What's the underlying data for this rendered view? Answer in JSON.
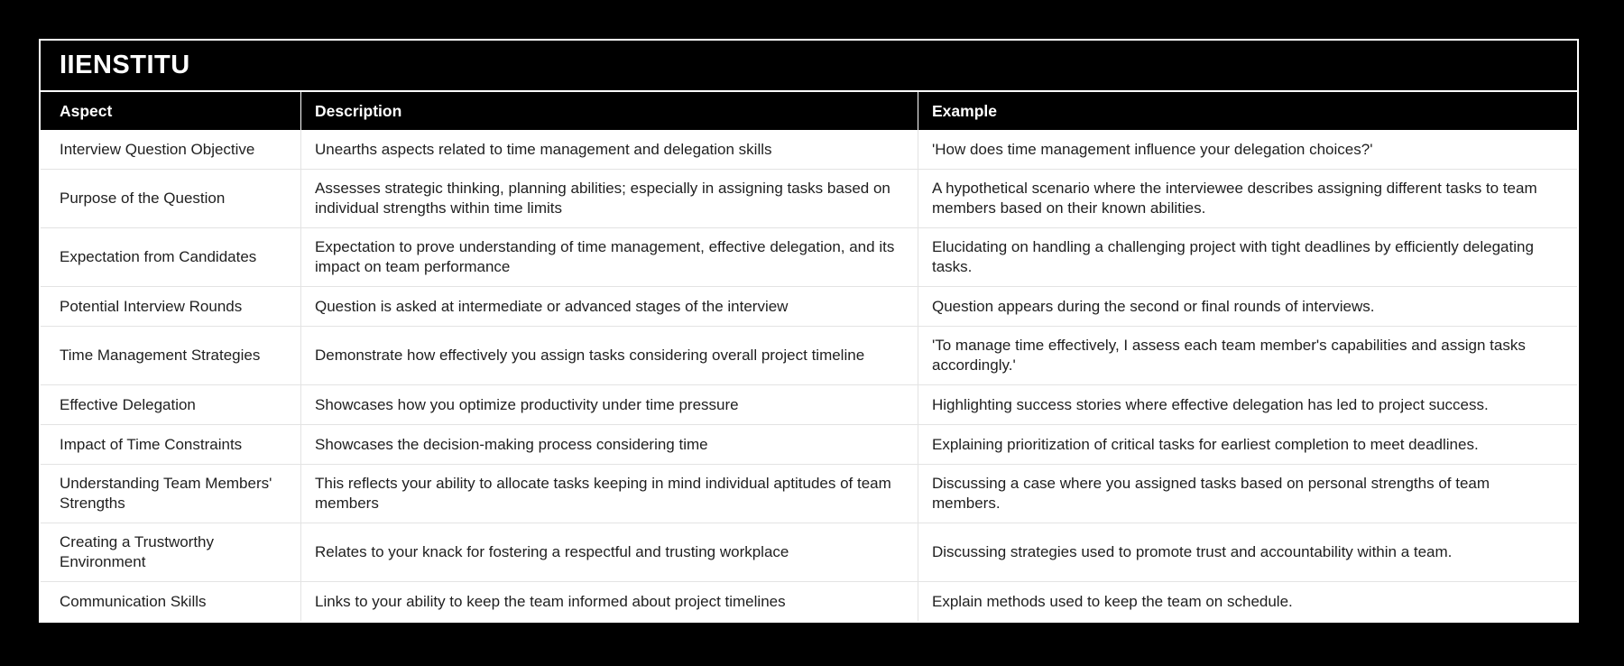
{
  "brand": {
    "title": "IIENSTITU"
  },
  "table": {
    "headers": {
      "aspect": "Aspect",
      "description": "Description",
      "example": "Example"
    },
    "rows": [
      {
        "aspect": "Interview Question Objective",
        "description": "Unearths aspects related to time management and delegation skills",
        "example": "'How does time management influence your delegation choices?'"
      },
      {
        "aspect": "Purpose of the Question",
        "description": "Assesses strategic thinking, planning abilities; especially in assigning tasks based on individual strengths within time limits",
        "example": "A hypothetical scenario where the interviewee describes assigning different tasks to team members based on their known abilities."
      },
      {
        "aspect": "Expectation from Candidates",
        "description": "Expectation to prove understanding of time management, effective delegation, and its impact on team performance",
        "example": "Elucidating on handling a challenging project with tight deadlines by efficiently delegating tasks."
      },
      {
        "aspect": "Potential Interview Rounds",
        "description": "Question is asked at intermediate or advanced stages of the interview",
        "example": "Question appears during the second or final rounds of interviews."
      },
      {
        "aspect": "Time Management Strategies",
        "description": "Demonstrate how effectively you assign tasks considering overall project timeline",
        "example": "'To manage time effectively, I assess each team member's capabilities and assign tasks accordingly.'"
      },
      {
        "aspect": "Effective Delegation",
        "description": "Showcases how you optimize productivity under time pressure",
        "example": "Highlighting success stories where effective delegation has led to project success."
      },
      {
        "aspect": "Impact of Time Constraints",
        "description": "Showcases the decision-making process considering time",
        "example": "Explaining prioritization of critical tasks for earliest completion to meet deadlines."
      },
      {
        "aspect": "Understanding Team Members' Strengths",
        "description": "This reflects your ability to allocate tasks keeping in mind individual aptitudes of team members",
        "example": "Discussing a case where you assigned tasks based on personal strengths of team members."
      },
      {
        "aspect": "Creating a Trustworthy Environment",
        "description": "Relates to your knack for fostering a respectful and trusting workplace",
        "example": "Discussing strategies used to promote trust and accountability within a team."
      },
      {
        "aspect": "Communication Skills",
        "description": "Links to your ability to keep the team informed about project timelines",
        "example": "Explain methods used to keep the team on schedule."
      }
    ]
  },
  "colors": {
    "page_bg": "#000000",
    "panel_bg": "#ffffff",
    "header_bg": "#000000",
    "header_text": "#ffffff",
    "row_bg": "#ffffff",
    "row_text": "#1f1f1f",
    "divider": "#e3e3e3",
    "outer_border": "#ffffff"
  }
}
